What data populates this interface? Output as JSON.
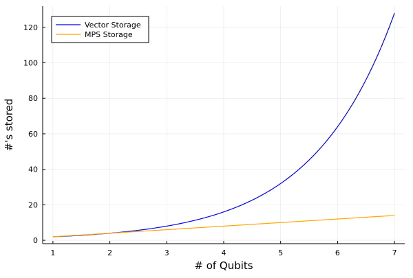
{
  "chart_data": {
    "type": "line",
    "title": "",
    "xlabel": "# of Qubits",
    "ylabel": "#'s stored",
    "xlim": [
      0.82,
      7.18
    ],
    "ylim": [
      -1.9,
      131.9
    ],
    "xticks": [
      1,
      2,
      3,
      4,
      5,
      6,
      7
    ],
    "yticks": [
      0,
      20,
      40,
      60,
      80,
      100,
      120
    ],
    "grid": true,
    "legend_position": "top-left",
    "series": [
      {
        "name": "Vector Storage",
        "color": "#0000ff",
        "function": "2^x",
        "x": [
          1,
          2,
          3,
          4,
          5,
          6,
          7
        ],
        "y": [
          2,
          4,
          8,
          16,
          32,
          64,
          128
        ]
      },
      {
        "name": "MPS Storage",
        "color": "#ffa500",
        "function": "2x",
        "x": [
          1,
          2,
          3,
          4,
          5,
          6,
          7
        ],
        "y": [
          2,
          4,
          6,
          8,
          10,
          12,
          14
        ]
      }
    ]
  }
}
